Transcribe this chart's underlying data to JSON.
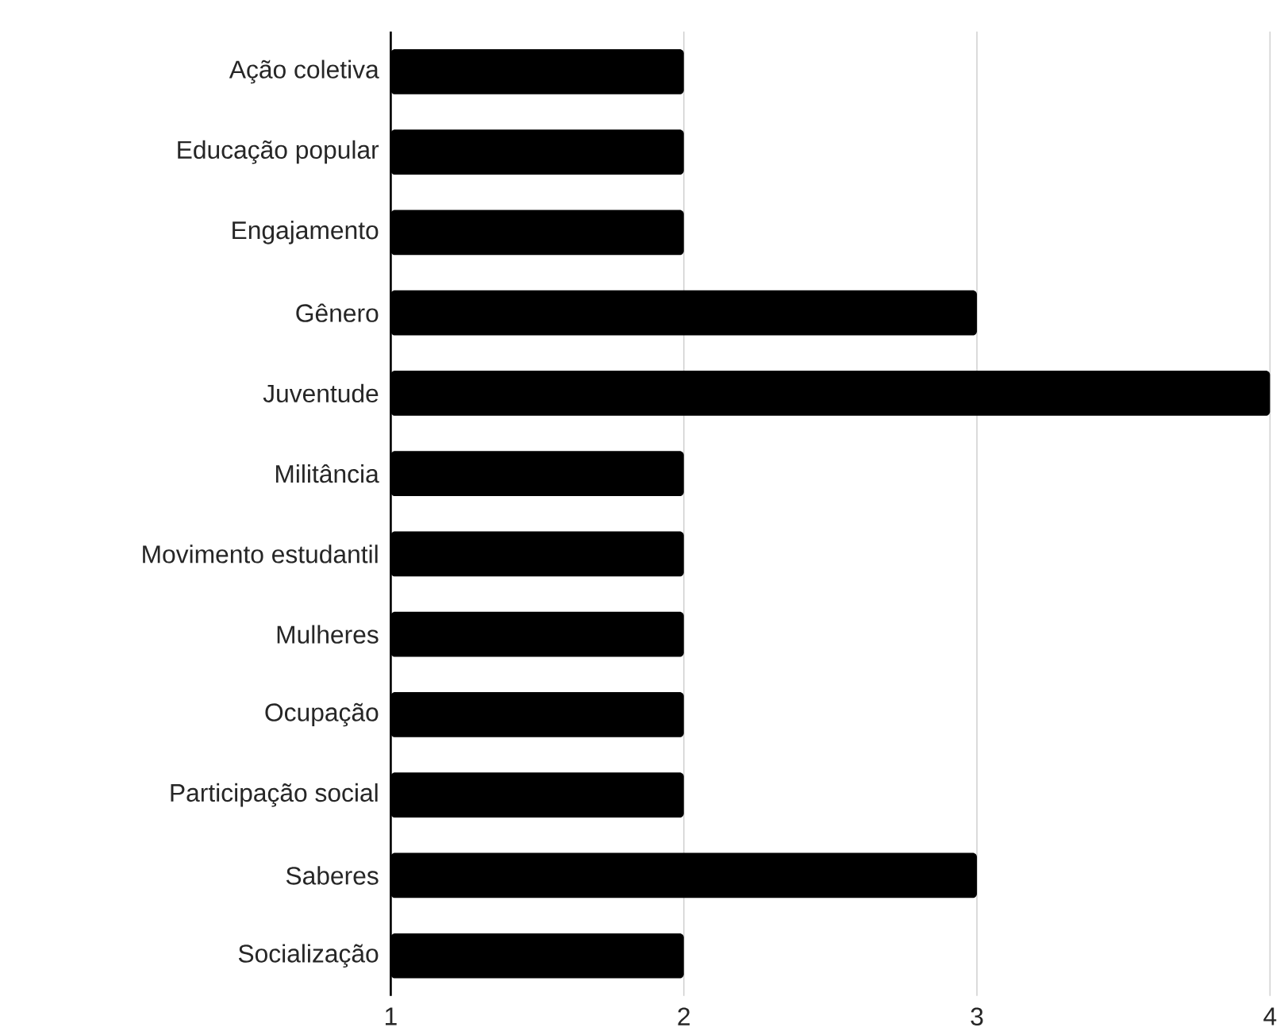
{
  "chart_data": {
    "type": "bar",
    "orientation": "horizontal",
    "categories": [
      "Ação coletiva",
      "Educação popular",
      "Engajamento",
      "Gênero",
      "Juventude",
      "Militância",
      "Movimento estudantil",
      "Mulheres",
      "Ocupação",
      "Participação social",
      "Saberes",
      "Socialização"
    ],
    "values": [
      2,
      2,
      2,
      3,
      4,
      2,
      2,
      2,
      2,
      2,
      3,
      2
    ],
    "color": "#000000",
    "xlim": [
      1,
      4
    ],
    "xticks": [
      1,
      2,
      3,
      4
    ],
    "grid": "x"
  }
}
